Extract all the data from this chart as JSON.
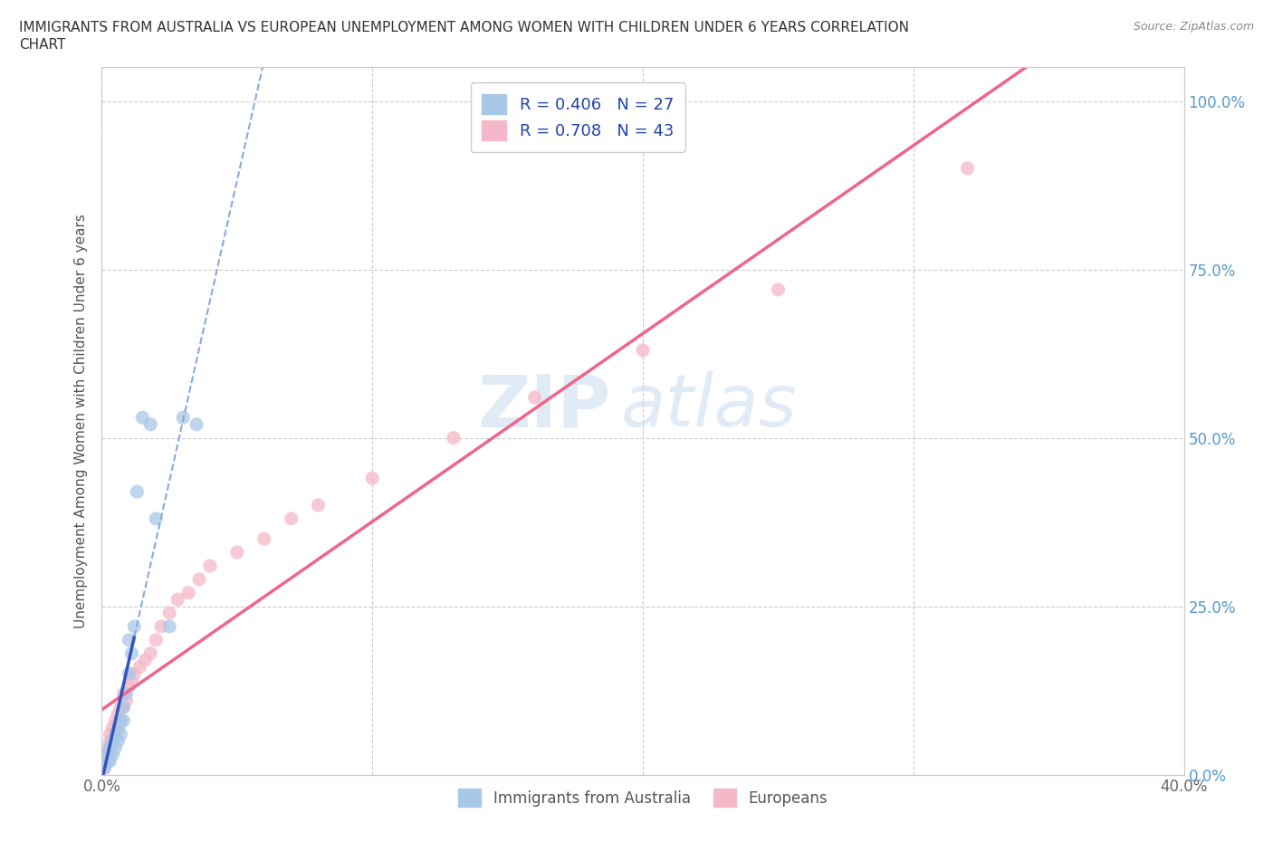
{
  "title_line1": "IMMIGRANTS FROM AUSTRALIA VS EUROPEAN UNEMPLOYMENT AMONG WOMEN WITH CHILDREN UNDER 6 YEARS CORRELATION",
  "title_line2": "CHART",
  "source_text": "Source: ZipAtlas.com",
  "ylabel": "Unemployment Among Women with Children Under 6 years",
  "xlim": [
    0.0,
    0.4
  ],
  "ylim": [
    0.0,
    1.05
  ],
  "x_ticks": [
    0.0,
    0.1,
    0.2,
    0.3,
    0.4
  ],
  "x_tick_labels": [
    "0.0%",
    "",
    "",
    "",
    "40.0%"
  ],
  "y_ticks": [
    0.0,
    0.25,
    0.5,
    0.75,
    1.0
  ],
  "y_tick_labels": [
    "0.0%",
    "25.0%",
    "50.0%",
    "75.0%",
    "100.0%"
  ],
  "watermark_zip": "ZIP",
  "watermark_atlas": "atlas",
  "color_blue": "#a8c8e8",
  "color_pink": "#f5b8c8",
  "line_blue_solid": "#3355bb",
  "line_blue_dash": "#88aadd",
  "line_pink": "#ee6688",
  "background_color": "#ffffff",
  "grid_color": "#cccccc",
  "aus_x": [
    0.001,
    0.002,
    0.002,
    0.003,
    0.003,
    0.004,
    0.004,
    0.005,
    0.005,
    0.006,
    0.006,
    0.007,
    0.007,
    0.008,
    0.008,
    0.009,
    0.01,
    0.01,
    0.011,
    0.012,
    0.013,
    0.015,
    0.018,
    0.02,
    0.025,
    0.03,
    0.035
  ],
  "aus_y": [
    0.01,
    0.02,
    0.03,
    0.02,
    0.04,
    0.03,
    0.05,
    0.04,
    0.06,
    0.05,
    0.07,
    0.06,
    0.08,
    0.08,
    0.1,
    0.12,
    0.15,
    0.2,
    0.18,
    0.22,
    0.42,
    0.53,
    0.52,
    0.38,
    0.22,
    0.53,
    0.52
  ],
  "eur_x": [
    0.001,
    0.001,
    0.001,
    0.002,
    0.002,
    0.002,
    0.003,
    0.003,
    0.003,
    0.004,
    0.004,
    0.005,
    0.005,
    0.006,
    0.006,
    0.007,
    0.007,
    0.008,
    0.008,
    0.009,
    0.01,
    0.011,
    0.012,
    0.014,
    0.016,
    0.018,
    0.02,
    0.022,
    0.025,
    0.028,
    0.032,
    0.036,
    0.04,
    0.05,
    0.06,
    0.07,
    0.08,
    0.1,
    0.13,
    0.16,
    0.2,
    0.25,
    0.32
  ],
  "eur_y": [
    0.01,
    0.02,
    0.03,
    0.02,
    0.03,
    0.04,
    0.03,
    0.05,
    0.06,
    0.05,
    0.07,
    0.06,
    0.08,
    0.07,
    0.09,
    0.08,
    0.1,
    0.1,
    0.12,
    0.11,
    0.13,
    0.14,
    0.15,
    0.16,
    0.17,
    0.18,
    0.2,
    0.22,
    0.24,
    0.26,
    0.27,
    0.29,
    0.31,
    0.33,
    0.35,
    0.38,
    0.4,
    0.44,
    0.5,
    0.56,
    0.63,
    0.72,
    0.9
  ],
  "legend_label_aus": "R = 0.406   N = 27",
  "legend_label_eur": "R = 0.708   N = 43",
  "bottom_legend_aus": "Immigrants from Australia",
  "bottom_legend_eur": "Europeans"
}
